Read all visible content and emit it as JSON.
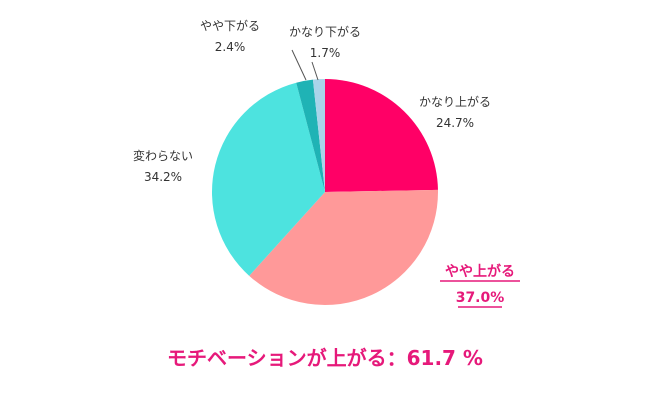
{
  "chart_data": {
    "type": "pie",
    "unit": "%",
    "slices": [
      {
        "label": "かなり上がる",
        "value": 24.7,
        "color": "#ff0066"
      },
      {
        "label": "やや上がる",
        "value": 37.0,
        "color": "#ff9999",
        "highlight": true
      },
      {
        "label": "変わらない",
        "value": 34.2,
        "color": "#4de3df"
      },
      {
        "label": "やや下がる",
        "value": 2.4,
        "color": "#1fb3b5"
      },
      {
        "label": "かなり下がる",
        "value": 1.7,
        "color": "#a9d4ea"
      }
    ],
    "highlight_color": "#e6197a",
    "summary": "モチベーションが上がる：61.7 %"
  }
}
